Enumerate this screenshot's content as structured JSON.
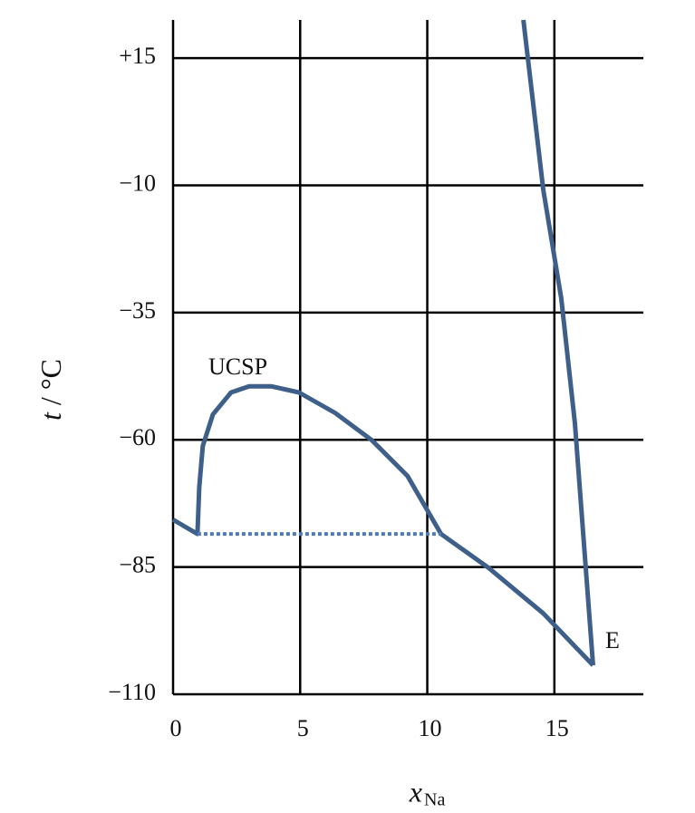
{
  "chart_data": {
    "type": "line",
    "x_label": "x",
    "x_label_sub": "Na",
    "y_label_var": "t",
    "y_label_unit": " / °C",
    "xlim": [
      0,
      18.5
    ],
    "xticks": [
      0,
      5,
      10,
      15
    ],
    "ylim": [
      -110,
      22.5
    ],
    "yticks": [
      {
        "value": 15,
        "label": "+15"
      },
      {
        "value": -10,
        "label": "−10"
      },
      {
        "value": -35,
        "label": "−35"
      },
      {
        "value": -60,
        "label": "−60"
      },
      {
        "value": -85,
        "label": "−85"
      },
      {
        "value": -110,
        "label": "−110"
      }
    ],
    "grid": true,
    "series": [
      {
        "color": "#3e5f8a",
        "style": "solid",
        "x": [
          0,
          0.96,
          1.03,
          1.17,
          1.57,
          2.28,
          2.99,
          3.88,
          4.95,
          6.37,
          7.8,
          9.22,
          10.54,
          12.42,
          14.56,
          16.52
        ],
        "values": [
          -75.7,
          -78.5,
          -69.3,
          -61.2,
          -55,
          -50.7,
          -49.5,
          -49.5,
          -50.7,
          -54.7,
          -60,
          -67.1,
          -78.5,
          -85.2,
          -94.1,
          -104.3
        ]
      },
      {
        "color": "#3e5f8a",
        "style": "solid",
        "x": [
          13.78,
          14.56,
          15.27,
          15.81,
          16.52
        ],
        "values": [
          22.5,
          -10.8,
          -32.2,
          -56.8,
          -104.3
        ]
      },
      {
        "color": "#4f79b8",
        "style": "dotted",
        "x": [
          0.96,
          10.54
        ],
        "values": [
          -78.5,
          -78.5
        ]
      }
    ],
    "annotations": [
      {
        "text": "UCSP"
      },
      {
        "text": "E"
      }
    ]
  }
}
